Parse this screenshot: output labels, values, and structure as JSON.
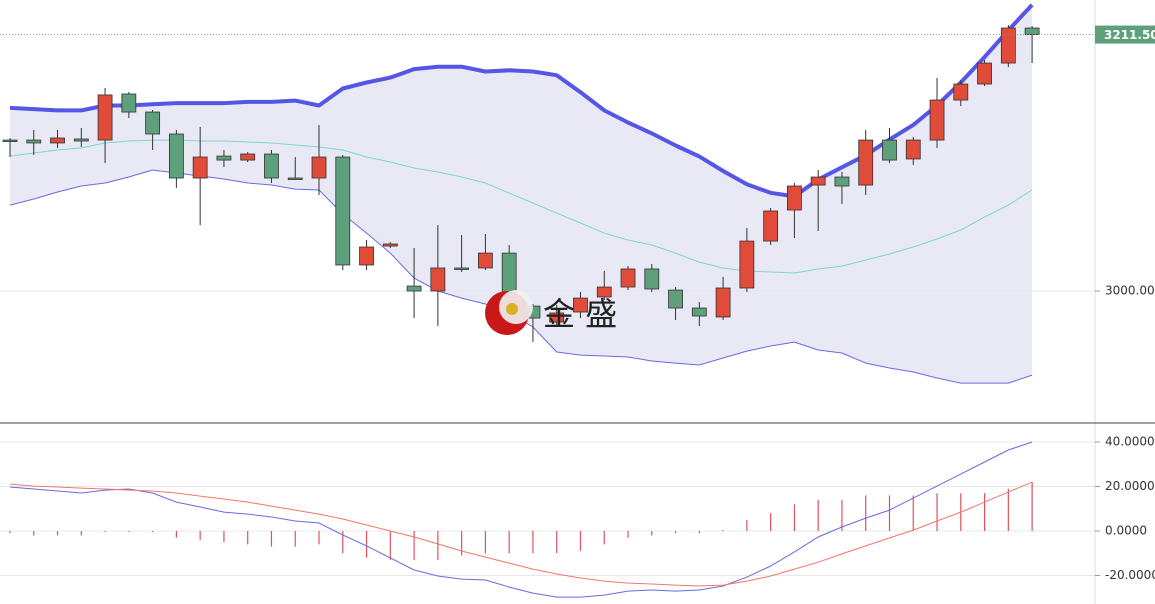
{
  "chart_data": [
    {
      "type": "candlestick",
      "up_color": "#e04b3a",
      "down_color": "#5e9f7c",
      "open": [
        3124.5,
        3124.5,
        3122.1,
        3125.4,
        3124.5,
        3162.5,
        3147.6,
        3129.5,
        3093.2,
        3111.3,
        3108,
        3113,
        3093.2,
        3093.2,
        3110.5,
        3021.5,
        3037.1,
        3004.1,
        3000,
        3019,
        3019,
        3031.3,
        2987.6,
        2974.4,
        2982.7,
        2995.1,
        3003.3,
        3018.2,
        3000.8,
        2986,
        2978.6,
        3002.5,
        3041.2,
        3066.8,
        3087.4,
        3094,
        3087.4,
        3124.5,
        3108.9,
        3124.5,
        3157.5,
        3170.7,
        3188,
        3216.9
      ],
      "high": [
        3126.2,
        3132.8,
        3132.8,
        3134.4,
        3167.4,
        3164.1,
        3149.3,
        3132.8,
        3135.3,
        3116.3,
        3114.6,
        3116.3,
        3110.5,
        3136.9,
        3112.2,
        3042.1,
        3040.4,
        3035.5,
        3054.4,
        3046.2,
        3047,
        3038,
        2989.3,
        2988.5,
        2999.2,
        3016.5,
        3020.6,
        3022.3,
        3003.3,
        2990.9,
        3011.6,
        3052,
        3068.5,
        3089.1,
        3099.8,
        3098.2,
        3132.8,
        3134.4,
        3127,
        3175.7,
        3174,
        3190.5,
        3219.4,
        3218.6
      ],
      "low": [
        3110.5,
        3112.2,
        3118,
        3118.8,
        3105.6,
        3142.7,
        3116.3,
        3085,
        3054.4,
        3102.3,
        3106.4,
        3089.1,
        3091.6,
        3079.2,
        3017.3,
        3017.3,
        3035.5,
        2977.7,
        2971.2,
        3015.7,
        3017.3,
        2984.3,
        2957.9,
        2972,
        2977.7,
        2992.6,
        3000.8,
        2999.2,
        2976.1,
        2971.2,
        2976.1,
        2999.2,
        3038,
        3043.7,
        3049.5,
        3071.8,
        3079.2,
        3105.6,
        3103.9,
        3118,
        3152.6,
        3169,
        3184.7,
        3188
      ],
      "close": [
        3123.7,
        3122.1,
        3126.2,
        3123.7,
        3161.7,
        3147.6,
        3129.5,
        3093.2,
        3110.5,
        3108,
        3113,
        3093.2,
        3093.2,
        3110.5,
        3021.5,
        3036.3,
        3038.8,
        3000,
        3019,
        3018.2,
        3031.3,
        2987.6,
        2977.7,
        2981.9,
        2994.2,
        3003.3,
        3018.2,
        3001.7,
        2986,
        2979.4,
        3002.5,
        3041.2,
        3066,
        3086.6,
        3094,
        3086.6,
        3124.5,
        3108,
        3124.5,
        3157.5,
        3170.7,
        3188,
        3216.9,
        3211.5
      ],
      "overlays": [
        {
          "color": "#5656e6",
          "width": 4,
          "values": [
            3151,
            3150,
            3149,
            3149,
            3153,
            3153,
            3154,
            3155,
            3155,
            3155,
            3156,
            3156,
            3157,
            3153,
            3167,
            3172,
            3176,
            3183,
            3185,
            3185,
            3181,
            3182,
            3181,
            3178,
            3164,
            3149,
            3139,
            3130,
            3120,
            3111,
            3099,
            3088,
            3081,
            3078,
            3092,
            3102,
            3112,
            3125,
            3137,
            3153,
            3172,
            3193,
            3215,
            3236
          ]
        },
        {
          "color": "#7dd8c8",
          "width": 1,
          "values": [
            3111.3,
            3113.8,
            3116.3,
            3118,
            3122.1,
            3123.7,
            3124.5,
            3124.5,
            3123.7,
            3123.7,
            3122.9,
            3122.1,
            3120.4,
            3118.8,
            3116.3,
            3110.5,
            3106.4,
            3101.5,
            3098.2,
            3094,
            3089.1,
            3080.8,
            3072.6,
            3064.3,
            3056.1,
            3047.8,
            3042.1,
            3038,
            3031.3,
            3023.9,
            3019,
            3016.5,
            3015.7,
            3014.9,
            3018.2,
            3020.6,
            3025.6,
            3030.5,
            3036.3,
            3042.9,
            3050.3,
            3061,
            3070.9,
            3083.3
          ]
        },
        {
          "color": "#6a6ae0",
          "width": 1,
          "values": [
            3070.9,
            3075.9,
            3081.7,
            3086.6,
            3089.1,
            3094,
            3099.8,
            3097.3,
            3094.9,
            3092.4,
            3089.1,
            3087.4,
            3084.1,
            3083.3,
            3063.5,
            3047.8,
            3031.3,
            3010.7,
            3000,
            2994.2,
            2989.3,
            2981.9,
            2970.3,
            2949.7,
            2947.2,
            2946.4,
            2945.6,
            2942.3,
            2940.6,
            2939,
            2944.8,
            2950.5,
            2954.7,
            2957.9,
            2951.4,
            2948.9,
            2940.6,
            2936.5,
            2933.2,
            2928.3,
            2924.1,
            2924.1,
            2924.1,
            2930.7
          ]
        }
      ],
      "band_fill": "#e4e4f2",
      "ylim": [
        2892,
        3240
      ],
      "yticks": [
        {
          "value": 3000,
          "label": "3000.00"
        }
      ],
      "last_price": {
        "value": 3211.5,
        "label": "3211.50"
      },
      "watermark": "金 盛",
      "grid": true
    },
    {
      "type": "macd",
      "ylim": [
        -32.8,
        48.1
      ],
      "yticks": [
        {
          "value": 40,
          "label": "40.0000"
        },
        {
          "value": 20,
          "label": "20.0000"
        },
        {
          "value": 0,
          "label": "0.0000"
        },
        {
          "value": -20,
          "label": "-20.0000"
        }
      ],
      "histogram": {
        "color": "#e3505c",
        "values": [
          -1,
          -2,
          -2,
          -2,
          -0.5,
          -0.5,
          -0.5,
          -3,
          -4,
          -5,
          -6,
          -7,
          -7,
          -6,
          -10,
          -12,
          -13,
          -13,
          -13,
          -11,
          -10,
          -10,
          -10,
          -10,
          -9,
          -6,
          -3,
          -2,
          -1,
          -1,
          0.5,
          5,
          8,
          12,
          14,
          14,
          16,
          16,
          16,
          17,
          17,
          17,
          19,
          22
        ]
      },
      "series": [
        {
          "color": "#6a6ae0",
          "values": [
            19.8,
            18.9,
            18,
            17.1,
            18.4,
            18.9,
            17.1,
            13,
            10.8,
            8.5,
            7.6,
            6.3,
            4.5,
            3.6,
            -1.8,
            -6.7,
            -12.1,
            -17.5,
            -20.2,
            -21.6,
            -22,
            -25.2,
            -27.9,
            -29.7,
            -29.7,
            -28.8,
            -27,
            -26.5,
            -27,
            -26.5,
            -24.7,
            -20.7,
            -15.7,
            -9.4,
            -2.7,
            1.8,
            5.8,
            9.4,
            14.8,
            20.2,
            25.6,
            31,
            36.4,
            40
          ]
        },
        {
          "color": "#f07868",
          "values": [
            21.1,
            20.2,
            19.8,
            19.3,
            18.9,
            18.4,
            18,
            17.1,
            15.7,
            14.4,
            13,
            11.2,
            9.4,
            7.6,
            5.4,
            2.7,
            0,
            -2.7,
            -5.8,
            -9,
            -11.7,
            -14.4,
            -17.1,
            -19.3,
            -21.1,
            -22.5,
            -23.4,
            -23.8,
            -24.3,
            -24.7,
            -24.3,
            -22.5,
            -20.2,
            -17.1,
            -14,
            -10.3,
            -6.7,
            -3.1,
            0.4,
            4.5,
            8.5,
            13,
            17.5,
            22
          ]
        }
      ],
      "grid": true
    }
  ]
}
